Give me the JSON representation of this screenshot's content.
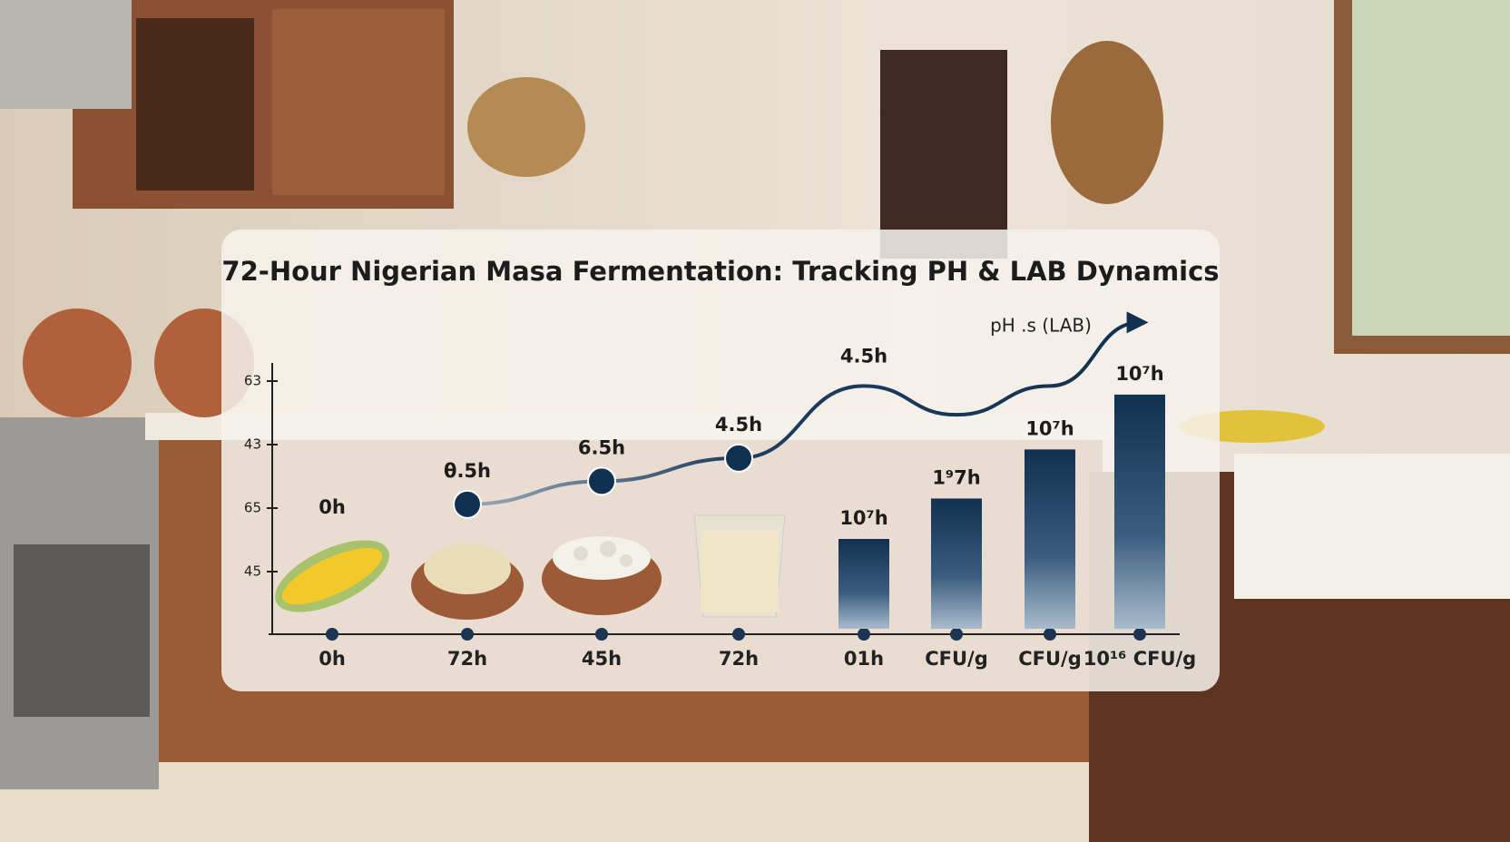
{
  "chart_data": {
    "type": "combo",
    "title": "72-Hour Nigerian Masa Fermentation: Tracking PH & LAB Dynamics",
    "legend_label": "pH .s (LAB)",
    "y_labels": [
      "63",
      "43",
      "65",
      "45"
    ],
    "categories": [
      "0h",
      "72h",
      "45h",
      "72h",
      "01h",
      "CFU/g",
      "CFU/g",
      "10¹⁶ CFU/g"
    ],
    "ylim": [
      0,
      110
    ],
    "series": [
      {
        "kind": "line",
        "color": "#1f3d5e",
        "values": [
          null,
          45,
          53,
          61,
          86,
          76,
          86,
          108
        ],
        "labels": [
          "0h",
          "θ.5h",
          "6.5h",
          "4.5h",
          "4.5h",
          null,
          null,
          null
        ]
      },
      {
        "kind": "bar",
        "color": "#163556",
        "values": [
          null,
          null,
          null,
          null,
          33,
          47,
          64,
          83
        ],
        "labels": [
          null,
          null,
          null,
          null,
          "10⁷h",
          "1⁹7h",
          "10⁷h",
          "10⁷h"
        ]
      }
    ]
  }
}
